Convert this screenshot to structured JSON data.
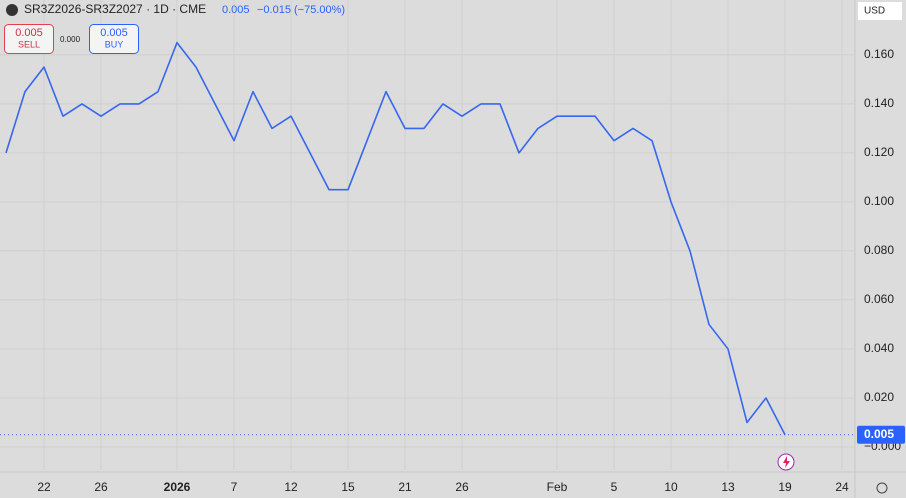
{
  "chart_data": {
    "type": "line",
    "title": "SR3Z2026-SR3Z2027 · 1D · CME",
    "quote": {
      "last": "0.005",
      "change": "−0.015 (−75.00%)",
      "sell_price": "0.005",
      "sell_label": "SELL",
      "spread": "0.000",
      "buy_price": "0.005",
      "buy_label": "BUY"
    },
    "currency": "USD",
    "categories": [
      null,
      null,
      "22",
      null,
      null,
      "26",
      null,
      null,
      null,
      "2026",
      null,
      null,
      "7",
      null,
      null,
      "12",
      null,
      null,
      "15",
      null,
      null,
      "21",
      null,
      null,
      "26",
      null,
      null,
      null,
      null,
      "Feb",
      null,
      null,
      "5",
      null,
      null,
      "10",
      null,
      null,
      "13",
      null,
      null,
      "19",
      null,
      null,
      "24"
    ],
    "series": [
      {
        "color": "#3567f0",
        "values": [
          0.12,
          0.145,
          0.155,
          0.135,
          0.14,
          0.135,
          0.14,
          0.14,
          0.145,
          0.165,
          0.155,
          0.14,
          0.125,
          0.145,
          0.13,
          0.135,
          0.12,
          0.105,
          0.105,
          0.125,
          0.145,
          0.13,
          0.13,
          0.14,
          0.135,
          0.14,
          0.14,
          0.12,
          0.13,
          0.135,
          0.135,
          0.135,
          0.125,
          0.13,
          0.125,
          0.1,
          0.08,
          0.05,
          0.04,
          0.01,
          0.02,
          0.005,
          null,
          null,
          null
        ]
      }
    ],
    "last_price": {
      "value": 0.005,
      "label": "0.005"
    },
    "ylim": [
      -0.0094,
      0.1824
    ],
    "yticks": [
      {
        "value": 0,
        "label": "−0.000"
      },
      {
        "value": 0.02,
        "label": "0.020"
      },
      {
        "value": 0.04,
        "label": "0.040"
      },
      {
        "value": 0.06,
        "label": "0.060"
      },
      {
        "value": 0.08,
        "label": "0.080"
      },
      {
        "value": 0.1,
        "label": "0.100"
      },
      {
        "value": 0.12,
        "label": "0.120"
      },
      {
        "value": 0.14,
        "label": "0.140"
      },
      {
        "value": 0.16,
        "label": "0.160"
      }
    ],
    "grid": true
  }
}
